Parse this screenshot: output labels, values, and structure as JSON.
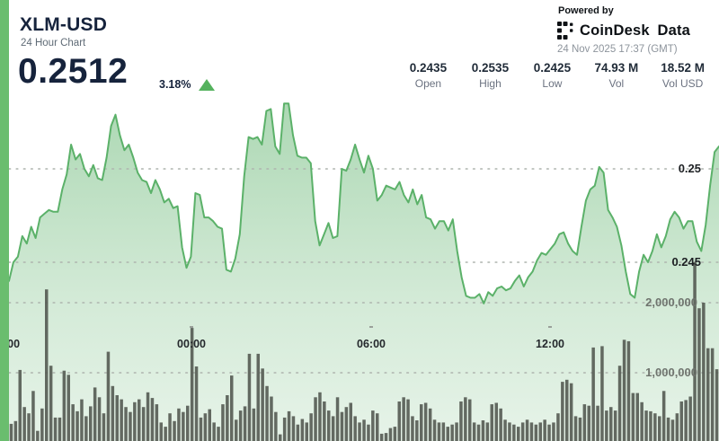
{
  "header": {
    "title": "XLM-USD",
    "subtitle": "24 Hour Chart",
    "price": "0.2512",
    "change": "3.18%",
    "change_direction": "up"
  },
  "branding": {
    "powered_by": "Powered by",
    "brand": "CoinDesk Data",
    "timestamp": "24 Nov 2025 17:37 (GMT)"
  },
  "stats": {
    "items": [
      {
        "value": "0.2435",
        "label": "Open"
      },
      {
        "value": "0.2535",
        "label": "High"
      },
      {
        "value": "0.2425",
        "label": "Low"
      },
      {
        "value": "74.93 M",
        "label": "Vol"
      },
      {
        "value": "18.52 M",
        "label": "Vol USD"
      }
    ]
  },
  "colors": {
    "accent_green": "#5bb169",
    "area_fill_green": "#9ed2a5",
    "bar_gray": "#545a52",
    "navy": "#16233c",
    "strip_green": "#6abd6e",
    "up_triangle_green": "#55b25e"
  },
  "chart_data": {
    "type": "area",
    "title": "XLM-USD 24 Hour Chart",
    "legend": "none",
    "grid": "dotted-horizontal",
    "x_tick_labels": [
      ":00",
      "00:00",
      "06:00",
      "12:00"
    ],
    "price_axis": {
      "tick_labels": [
        "0.25",
        "0.245"
      ],
      "tick_values": [
        0.25,
        0.245
      ],
      "visible_range": [
        0.2415,
        0.2542
      ]
    },
    "volume_axis": {
      "tick_labels": [
        "2,000,000",
        "1,000,000"
      ],
      "tick_values": [
        2000000,
        1000000
      ]
    },
    "summary": {
      "open": 0.2435,
      "high": 0.2535,
      "low": 0.2425,
      "last": 0.2512,
      "change_pct": 3.18,
      "vol": "74.93 M",
      "vol_usd": "18.52 M"
    },
    "series": [
      {
        "name": "price",
        "type": "area",
        "values": [
          0.244,
          0.245,
          0.2453,
          0.2464,
          0.246,
          0.2469,
          0.2463,
          0.2474,
          0.2476,
          0.2478,
          0.2477,
          0.2477,
          0.2489,
          0.2497,
          0.2513,
          0.2505,
          0.2508,
          0.25,
          0.2496,
          0.2502,
          0.2495,
          0.2494,
          0.2506,
          0.2523,
          0.2529,
          0.2518,
          0.251,
          0.2513,
          0.2506,
          0.2498,
          0.2494,
          0.2493,
          0.2487,
          0.2494,
          0.2489,
          0.2482,
          0.2484,
          0.2479,
          0.248,
          0.2458,
          0.2447,
          0.2453,
          0.2487,
          0.2486,
          0.2474,
          0.2474,
          0.2472,
          0.2469,
          0.2468,
          0.2446,
          0.2445,
          0.2452,
          0.2465,
          0.2496,
          0.2517,
          0.2516,
          0.2517,
          0.2513,
          0.2531,
          0.2532,
          0.2512,
          0.2508,
          0.2535,
          0.2535,
          0.2518,
          0.2507,
          0.2506,
          0.2506,
          0.2503,
          0.2472,
          0.2459,
          0.2465,
          0.2471,
          0.2463,
          0.2464,
          0.25,
          0.2499,
          0.2505,
          0.2513,
          0.2505,
          0.2498,
          0.2507,
          0.25,
          0.2483,
          0.2486,
          0.2491,
          0.249,
          0.2489,
          0.2493,
          0.2486,
          0.2482,
          0.2489,
          0.2481,
          0.2486,
          0.2474,
          0.2473,
          0.2468,
          0.2472,
          0.2472,
          0.2467,
          0.2473,
          0.2456,
          0.2442,
          0.2432,
          0.2431,
          0.2431,
          0.2433,
          0.2428,
          0.2434,
          0.2432,
          0.2436,
          0.2437,
          0.2435,
          0.2436,
          0.244,
          0.2443,
          0.2437,
          0.2442,
          0.2445,
          0.2451,
          0.2455,
          0.2454,
          0.2457,
          0.246,
          0.2465,
          0.2466,
          0.246,
          0.2456,
          0.2454,
          0.2469,
          0.2483,
          0.2489,
          0.2491,
          0.2501,
          0.2498,
          0.2478,
          0.2474,
          0.2469,
          0.2459,
          0.2445,
          0.2433,
          0.2431,
          0.2445,
          0.2454,
          0.245,
          0.2456,
          0.2465,
          0.2458,
          0.2464,
          0.2473,
          0.2477,
          0.2474,
          0.2468,
          0.2472,
          0.2472,
          0.2461,
          0.2456,
          0.247,
          0.2491,
          0.2509,
          0.2512
        ]
      },
      {
        "name": "volume",
        "type": "bar",
        "values": [
          270000,
          310000,
          1040000,
          510000,
          420000,
          740000,
          170000,
          490000,
          2190000,
          1100000,
          360000,
          360000,
          1030000,
          970000,
          550000,
          450000,
          620000,
          380000,
          520000,
          790000,
          650000,
          420000,
          1300000,
          810000,
          680000,
          620000,
          510000,
          440000,
          580000,
          620000,
          510000,
          720000,
          640000,
          550000,
          290000,
          230000,
          420000,
          310000,
          490000,
          440000,
          530000,
          1640000,
          1090000,
          360000,
          420000,
          480000,
          290000,
          230000,
          550000,
          680000,
          960000,
          330000,
          460000,
          520000,
          1270000,
          490000,
          1270000,
          1060000,
          810000,
          660000,
          440000,
          120000,
          360000,
          450000,
          380000,
          260000,
          340000,
          290000,
          420000,
          650000,
          720000,
          590000,
          460000,
          380000,
          650000,
          440000,
          510000,
          570000,
          380000,
          290000,
          330000,
          260000,
          460000,
          420000,
          130000,
          140000,
          210000,
          230000,
          590000,
          650000,
          620000,
          380000,
          320000,
          550000,
          570000,
          490000,
          330000,
          290000,
          290000,
          230000,
          260000,
          290000,
          590000,
          650000,
          620000,
          290000,
          260000,
          320000,
          290000,
          550000,
          570000,
          490000,
          330000,
          290000,
          260000,
          230000,
          290000,
          330000,
          290000,
          260000,
          290000,
          330000,
          260000,
          290000,
          420000,
          870000,
          900000,
          850000,
          380000,
          360000,
          550000,
          530000,
          1360000,
          530000,
          1380000,
          460000,
          510000,
          460000,
          1100000,
          1470000,
          1450000,
          710000,
          710000,
          580000,
          460000,
          450000,
          420000,
          380000,
          740000,
          360000,
          330000,
          420000,
          590000,
          610000,
          660000,
          2580000,
          1920000,
          2000000,
          1350000,
          1350000,
          1050000
        ]
      }
    ]
  }
}
